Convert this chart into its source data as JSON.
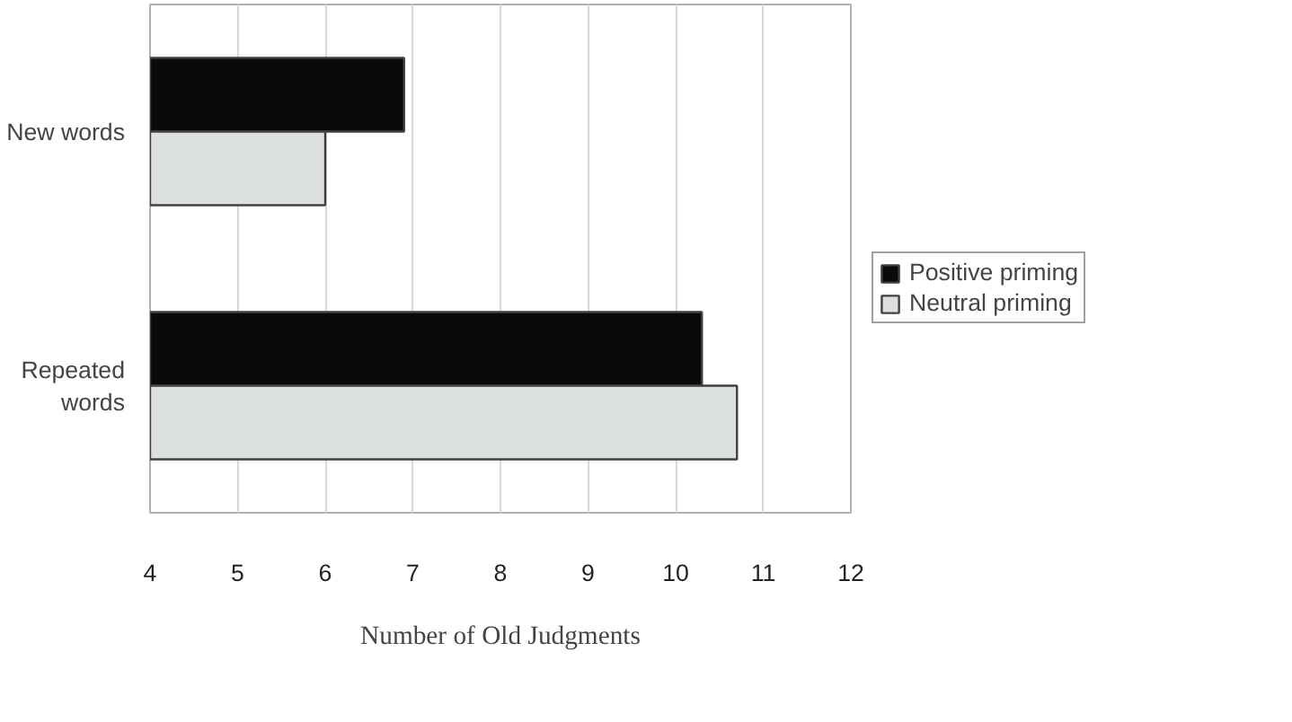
{
  "chart_data": {
    "type": "bar",
    "orientation": "horizontal",
    "xlabel": "Number of Old Judgments",
    "categories": [
      "New words",
      "Repeated words"
    ],
    "series": [
      {
        "name": "Positive priming",
        "color": "#0a0a0a",
        "values": [
          6.9,
          10.3
        ]
      },
      {
        "name": "Neutral priming",
        "color": "#dcdfe0",
        "values": [
          6.0,
          10.7
        ]
      }
    ],
    "xlim": [
      4,
      12
    ],
    "xticks": [
      4,
      5,
      6,
      7,
      8,
      9,
      10,
      11,
      12
    ],
    "grid": "x",
    "legend": "right"
  }
}
